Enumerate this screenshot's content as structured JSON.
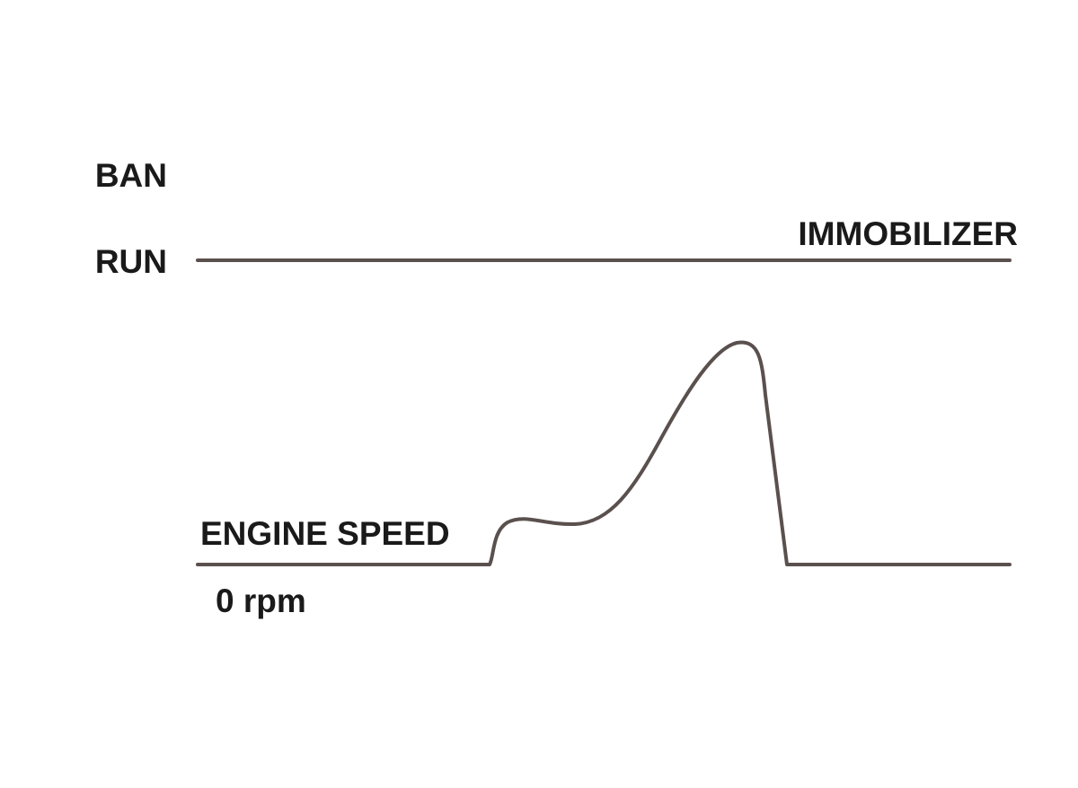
{
  "immobilizer": {
    "title": "IMMOBILIZER",
    "states": [
      "BAN",
      "RUN"
    ]
  },
  "engine_speed": {
    "title": "ENGINE SPEED",
    "baseline": "0 rpm"
  }
}
